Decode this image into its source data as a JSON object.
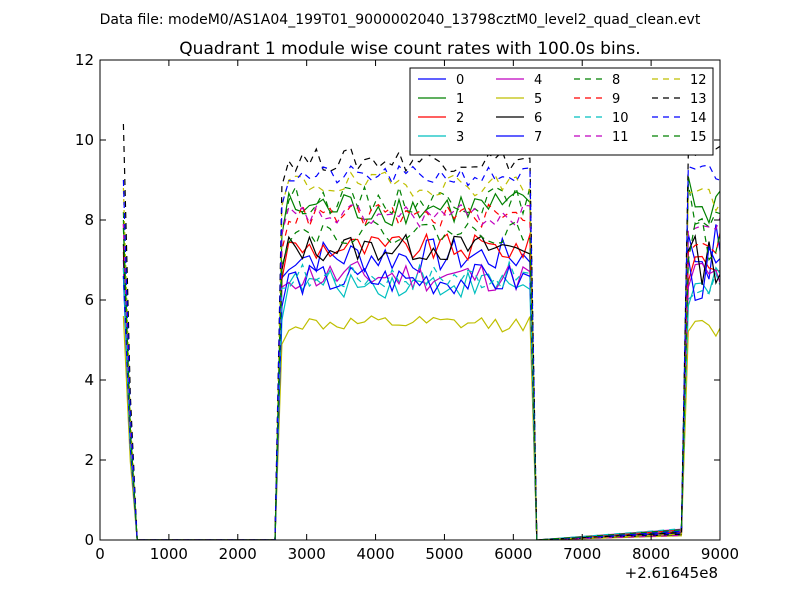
{
  "suptitle": "Data file: modeM0/AS1A04_199T01_9000002040_13798cztM0_level2_quad_clean.evt",
  "chart_data": {
    "type": "line",
    "title": "Quadrant 1 module wise count rates with 100.0s bins.",
    "xlabel": "",
    "ylabel": "",
    "xlim": [
      0,
      9000
    ],
    "ylim": [
      0,
      12
    ],
    "x_ticks": [
      0,
      1000,
      2000,
      3000,
      4000,
      5000,
      6000,
      7000,
      8000,
      9000
    ],
    "x_tick_labels": [
      "0",
      "1000",
      "2000",
      "3000",
      "4000",
      "5000",
      "6000",
      "7000",
      "8000",
      "9000"
    ],
    "y_ticks": [
      0,
      2,
      4,
      6,
      8,
      10,
      12
    ],
    "y_tick_labels": [
      "0",
      "2",
      "4",
      "6",
      "8",
      "10",
      "12"
    ],
    "x_offset_label": "+2.61645e8",
    "legend_position": "top-right",
    "legend_columns": 4,
    "grid": false,
    "series": [
      {
        "name": "0",
        "color": "#0000ff",
        "dash": "solid",
        "level_first": 7.0,
        "level": 7.1,
        "amp": 0.45,
        "level_last": 7.2
      },
      {
        "name": "1",
        "color": "#008000",
        "dash": "solid",
        "level_first": 8.0,
        "level": 8.3,
        "amp": 0.45,
        "level_last": 8.4
      },
      {
        "name": "2",
        "color": "#ff0000",
        "dash": "solid",
        "level_first": 7.2,
        "level": 7.3,
        "amp": 0.35,
        "level_last": 7.0
      },
      {
        "name": "3",
        "color": "#00bfbf",
        "dash": "solid",
        "level_first": 6.6,
        "level": 6.4,
        "amp": 0.35,
        "level_last": 6.2
      },
      {
        "name": "4",
        "color": "#bf00bf",
        "dash": "solid",
        "level_first": 6.8,
        "level": 6.6,
        "amp": 0.4,
        "level_last": 6.5
      },
      {
        "name": "5",
        "color": "#bfbf00",
        "dash": "solid",
        "level_first": 5.6,
        "level": 5.4,
        "amp": 0.2,
        "level_last": 5.2
      },
      {
        "name": "6",
        "color": "#000000",
        "dash": "solid",
        "level_first": 7.4,
        "level": 7.3,
        "amp": 0.35,
        "level_last": 7.0
      },
      {
        "name": "7",
        "color": "#0000ff",
        "dash": "solid",
        "level_first": 6.6,
        "level": 6.5,
        "amp": 0.4,
        "level_last": 6.6
      },
      {
        "name": "8",
        "color": "#008000",
        "dash": "dash",
        "level_first": 8.2,
        "level": 8.5,
        "amp": 0.35,
        "level_last": 8.3
      },
      {
        "name": "9",
        "color": "#ff0000",
        "dash": "dash",
        "level_first": 7.9,
        "level": 8.1,
        "amp": 0.3,
        "level_last": 7.6
      },
      {
        "name": "10",
        "color": "#00bfbf",
        "dash": "dash",
        "level_first": 6.8,
        "level": 6.6,
        "amp": 0.35,
        "level_last": 6.3
      },
      {
        "name": "11",
        "color": "#bf00bf",
        "dash": "dash",
        "level_first": 7.9,
        "level": 8.1,
        "amp": 0.3,
        "level_last": 7.8
      },
      {
        "name": "12",
        "color": "#bfbf00",
        "dash": "dash",
        "level_first": 8.8,
        "level": 8.9,
        "amp": 0.3,
        "level_last": 8.6
      },
      {
        "name": "13",
        "color": "#000000",
        "dash": "dash",
        "level_first": 10.4,
        "level": 9.5,
        "amp": 0.3,
        "level_last": 9.4
      },
      {
        "name": "14",
        "color": "#0000ff",
        "dash": "dash",
        "level_first": 9.0,
        "level": 9.1,
        "amp": 0.25,
        "level_last": 9.0
      },
      {
        "name": "15",
        "color": "#008000",
        "dash": "dash",
        "level_first": 7.8,
        "level": 7.7,
        "amp": 0.3,
        "level_last": 7.5
      }
    ]
  }
}
